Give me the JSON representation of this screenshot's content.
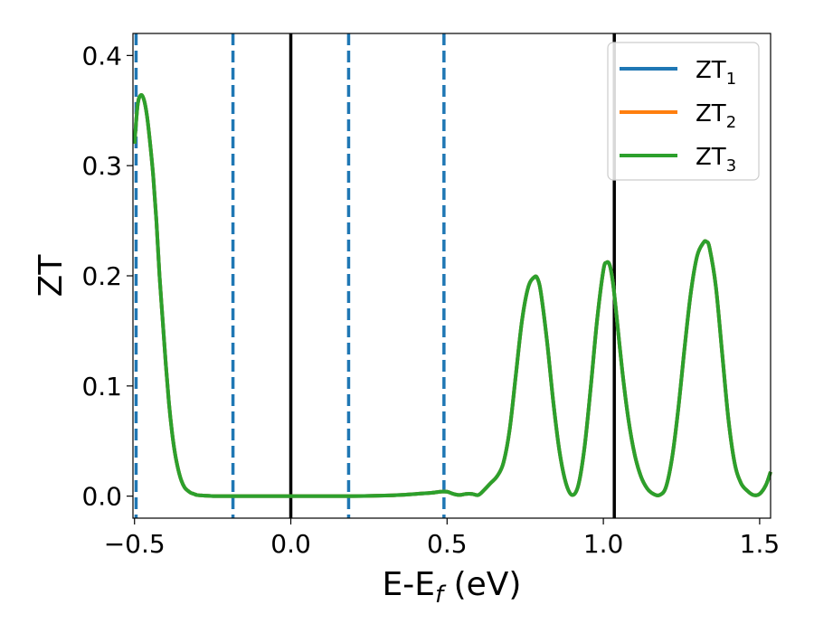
{
  "chart_data": {
    "type": "line",
    "xlabel": {
      "main": "E-E",
      "sub": "f",
      "tail": " (eV)"
    },
    "ylabel": "ZT",
    "xlim": [
      -0.505,
      1.535
    ],
    "ylim": [
      -0.02,
      0.42
    ],
    "x_ticks": [
      -0.5,
      0.0,
      0.5,
      1.0,
      1.5
    ],
    "x_tick_labels": [
      "−0.5",
      "0.0",
      "0.5",
      "1.0",
      "1.5"
    ],
    "y_ticks": [
      0.0,
      0.1,
      0.2,
      0.3,
      0.4
    ],
    "y_tick_labels": [
      "0.0",
      "0.1",
      "0.2",
      "0.3",
      "0.4"
    ],
    "grid": false,
    "legend_position": "top-right",
    "solid_vertical_lines": {
      "color": "#000000",
      "x": [
        0.0,
        1.035
      ]
    },
    "dashed_vertical_lines": {
      "color": "#1f77b4",
      "x": [
        -0.495,
        -0.185,
        0.185,
        0.49
      ]
    },
    "series": [
      {
        "name": "ZT",
        "sub": "1",
        "color": "#1f77b4",
        "x": [
          -0.5,
          -0.49,
          -0.48,
          -0.47,
          -0.46,
          -0.45,
          -0.44,
          -0.43,
          -0.42,
          -0.41,
          -0.4,
          -0.39,
          -0.38,
          -0.37,
          -0.36,
          -0.35,
          -0.34,
          -0.33,
          -0.32,
          -0.31,
          -0.3,
          -0.28,
          -0.26,
          -0.24,
          -0.2,
          -0.1,
          0.0,
          0.1,
          0.2,
          0.3,
          0.35,
          0.4,
          0.45,
          0.48,
          0.5,
          0.52,
          0.54,
          0.56,
          0.58,
          0.6,
          0.62,
          0.64,
          0.66,
          0.68,
          0.7,
          0.72,
          0.74,
          0.76,
          0.78,
          0.79,
          0.8,
          0.82,
          0.84,
          0.86,
          0.88,
          0.9,
          0.92,
          0.94,
          0.96,
          0.98,
          1.0,
          1.01,
          1.02,
          1.03,
          1.04,
          1.06,
          1.08,
          1.1,
          1.12,
          1.14,
          1.16,
          1.18,
          1.2,
          1.22,
          1.24,
          1.26,
          1.28,
          1.3,
          1.32,
          1.33,
          1.34,
          1.36,
          1.38,
          1.4,
          1.42,
          1.44,
          1.46,
          1.48,
          1.5,
          1.52,
          1.535
        ],
        "y": [
          0.32,
          0.355,
          0.364,
          0.36,
          0.345,
          0.32,
          0.29,
          0.25,
          0.2,
          0.16,
          0.12,
          0.085,
          0.058,
          0.038,
          0.024,
          0.014,
          0.008,
          0.005,
          0.003,
          0.002,
          0.001,
          0.0005,
          0.0002,
          0.0,
          0.0,
          0.0,
          0.0,
          0.0,
          0.0,
          0.0005,
          0.001,
          0.002,
          0.003,
          0.004,
          0.004,
          0.002,
          0.001,
          0.002,
          0.002,
          0.001,
          0.006,
          0.012,
          0.018,
          0.03,
          0.06,
          0.11,
          0.16,
          0.19,
          0.199,
          0.197,
          0.185,
          0.14,
          0.085,
          0.04,
          0.012,
          0.001,
          0.01,
          0.045,
          0.1,
          0.16,
          0.205,
          0.212,
          0.21,
          0.195,
          0.17,
          0.115,
          0.07,
          0.038,
          0.018,
          0.007,
          0.002,
          0.001,
          0.008,
          0.035,
          0.08,
          0.135,
          0.185,
          0.218,
          0.23,
          0.231,
          0.225,
          0.19,
          0.13,
          0.07,
          0.03,
          0.012,
          0.005,
          0.001,
          0.002,
          0.01,
          0.022
        ]
      },
      {
        "name": "ZT",
        "sub": "2",
        "color": "#ff7f0e",
        "x": [
          -0.5,
          -0.49,
          -0.48,
          -0.47,
          -0.46,
          -0.45,
          -0.44,
          -0.43,
          -0.42,
          -0.41,
          -0.4,
          -0.39,
          -0.38,
          -0.37,
          -0.36,
          -0.35,
          -0.34,
          -0.33,
          -0.32,
          -0.31,
          -0.3,
          -0.28,
          -0.26,
          -0.24,
          -0.2,
          -0.1,
          0.0,
          0.1,
          0.2,
          0.3,
          0.35,
          0.4,
          0.45,
          0.48,
          0.5,
          0.52,
          0.54,
          0.56,
          0.58,
          0.6,
          0.62,
          0.64,
          0.66,
          0.68,
          0.7,
          0.72,
          0.74,
          0.76,
          0.78,
          0.79,
          0.8,
          0.82,
          0.84,
          0.86,
          0.88,
          0.9,
          0.92,
          0.94,
          0.96,
          0.98,
          1.0,
          1.01,
          1.02,
          1.03,
          1.04,
          1.06,
          1.08,
          1.1,
          1.12,
          1.14,
          1.16,
          1.18,
          1.2,
          1.22,
          1.24,
          1.26,
          1.28,
          1.3,
          1.32,
          1.33,
          1.34,
          1.36,
          1.38,
          1.4,
          1.42,
          1.44,
          1.46,
          1.48,
          1.5,
          1.52,
          1.535
        ],
        "y": [
          0.32,
          0.355,
          0.364,
          0.36,
          0.345,
          0.32,
          0.29,
          0.25,
          0.2,
          0.16,
          0.12,
          0.085,
          0.058,
          0.038,
          0.024,
          0.014,
          0.008,
          0.005,
          0.003,
          0.002,
          0.001,
          0.0005,
          0.0002,
          0.0,
          0.0,
          0.0,
          0.0,
          0.0,
          0.0,
          0.0005,
          0.001,
          0.002,
          0.003,
          0.004,
          0.004,
          0.002,
          0.001,
          0.002,
          0.002,
          0.001,
          0.006,
          0.012,
          0.018,
          0.03,
          0.06,
          0.11,
          0.16,
          0.19,
          0.199,
          0.197,
          0.185,
          0.14,
          0.085,
          0.04,
          0.012,
          0.001,
          0.01,
          0.045,
          0.1,
          0.16,
          0.205,
          0.212,
          0.21,
          0.195,
          0.17,
          0.115,
          0.07,
          0.038,
          0.018,
          0.007,
          0.002,
          0.001,
          0.008,
          0.035,
          0.08,
          0.135,
          0.185,
          0.218,
          0.23,
          0.231,
          0.225,
          0.19,
          0.13,
          0.07,
          0.03,
          0.012,
          0.005,
          0.001,
          0.002,
          0.01,
          0.022
        ]
      },
      {
        "name": "ZT",
        "sub": "3",
        "color": "#2ca02c",
        "x": [
          -0.5,
          -0.49,
          -0.48,
          -0.47,
          -0.46,
          -0.45,
          -0.44,
          -0.43,
          -0.42,
          -0.41,
          -0.4,
          -0.39,
          -0.38,
          -0.37,
          -0.36,
          -0.35,
          -0.34,
          -0.33,
          -0.32,
          -0.31,
          -0.3,
          -0.28,
          -0.26,
          -0.24,
          -0.2,
          -0.1,
          0.0,
          0.1,
          0.2,
          0.3,
          0.35,
          0.4,
          0.45,
          0.48,
          0.5,
          0.52,
          0.54,
          0.56,
          0.58,
          0.6,
          0.62,
          0.64,
          0.66,
          0.68,
          0.7,
          0.72,
          0.74,
          0.76,
          0.78,
          0.79,
          0.8,
          0.82,
          0.84,
          0.86,
          0.88,
          0.9,
          0.92,
          0.94,
          0.96,
          0.98,
          1.0,
          1.01,
          1.02,
          1.03,
          1.04,
          1.06,
          1.08,
          1.1,
          1.12,
          1.14,
          1.16,
          1.18,
          1.2,
          1.22,
          1.24,
          1.26,
          1.28,
          1.3,
          1.32,
          1.33,
          1.34,
          1.36,
          1.38,
          1.4,
          1.42,
          1.44,
          1.46,
          1.48,
          1.5,
          1.52,
          1.535
        ],
        "y": [
          0.32,
          0.355,
          0.364,
          0.36,
          0.345,
          0.32,
          0.29,
          0.25,
          0.2,
          0.16,
          0.12,
          0.085,
          0.058,
          0.038,
          0.024,
          0.014,
          0.008,
          0.005,
          0.003,
          0.002,
          0.001,
          0.0005,
          0.0002,
          0.0,
          0.0,
          0.0,
          0.0,
          0.0,
          0.0,
          0.0005,
          0.001,
          0.002,
          0.003,
          0.004,
          0.004,
          0.002,
          0.001,
          0.002,
          0.002,
          0.001,
          0.006,
          0.012,
          0.018,
          0.03,
          0.06,
          0.11,
          0.16,
          0.19,
          0.199,
          0.197,
          0.185,
          0.14,
          0.085,
          0.04,
          0.012,
          0.001,
          0.01,
          0.045,
          0.1,
          0.16,
          0.205,
          0.212,
          0.21,
          0.195,
          0.17,
          0.115,
          0.07,
          0.038,
          0.018,
          0.007,
          0.002,
          0.001,
          0.008,
          0.035,
          0.08,
          0.135,
          0.185,
          0.218,
          0.23,
          0.231,
          0.225,
          0.19,
          0.13,
          0.07,
          0.03,
          0.012,
          0.005,
          0.001,
          0.002,
          0.01,
          0.022
        ]
      }
    ]
  }
}
